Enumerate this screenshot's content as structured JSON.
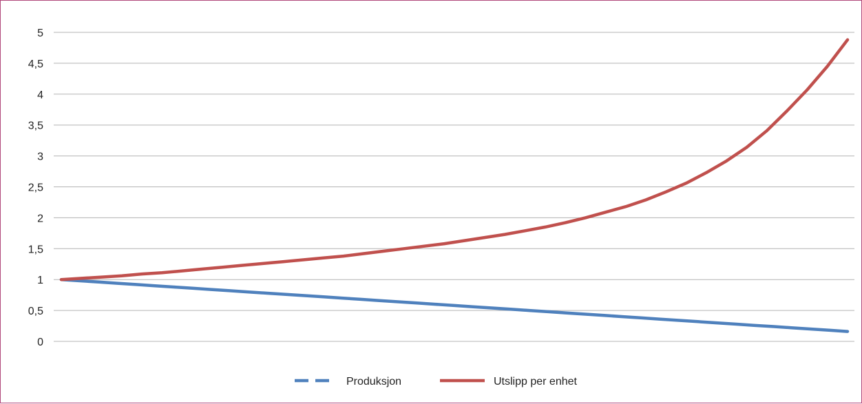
{
  "chart_data": {
    "type": "line",
    "title": "",
    "xlabel": "",
    "ylabel": "",
    "ylim": [
      0,
      5
    ],
    "yticks": [
      "0",
      "0,5",
      "1",
      "1,5",
      "2",
      "2,5",
      "3",
      "3,5",
      "4",
      "4,5",
      "5"
    ],
    "grid": true,
    "legend_position": "bottom",
    "x_count": 101,
    "series": [
      {
        "name": "Produksjon",
        "color": "#4f81bd",
        "style": "dashed",
        "values": [
          1.0,
          0.98,
          0.96,
          0.94,
          0.92,
          0.9,
          0.88,
          0.86,
          0.84,
          0.82,
          0.8,
          0.78,
          0.76,
          0.74,
          0.72,
          0.7,
          0.68,
          0.66,
          0.64,
          0.62,
          0.6,
          0.58,
          0.56,
          0.54,
          0.52,
          0.5,
          0.48,
          0.46,
          0.44,
          0.42,
          0.4,
          0.38,
          0.36,
          0.34,
          0.32,
          0.3,
          0.28,
          0.26,
          0.24,
          0.22,
          0.2,
          0.18,
          0.16
        ]
      },
      {
        "name": "Utslipp per enhet",
        "color": "#c0504d",
        "style": "solid",
        "values": [
          1.0,
          1.02,
          1.04,
          1.06,
          1.09,
          1.11,
          1.14,
          1.17,
          1.2,
          1.23,
          1.26,
          1.29,
          1.32,
          1.35,
          1.38,
          1.42,
          1.46,
          1.5,
          1.54,
          1.58,
          1.63,
          1.68,
          1.73,
          1.79,
          1.85,
          1.92,
          2.0,
          2.09,
          2.18,
          2.29,
          2.42,
          2.56,
          2.73,
          2.92,
          3.14,
          3.41,
          3.73,
          4.07,
          4.45,
          4.88
        ]
      }
    ]
  }
}
